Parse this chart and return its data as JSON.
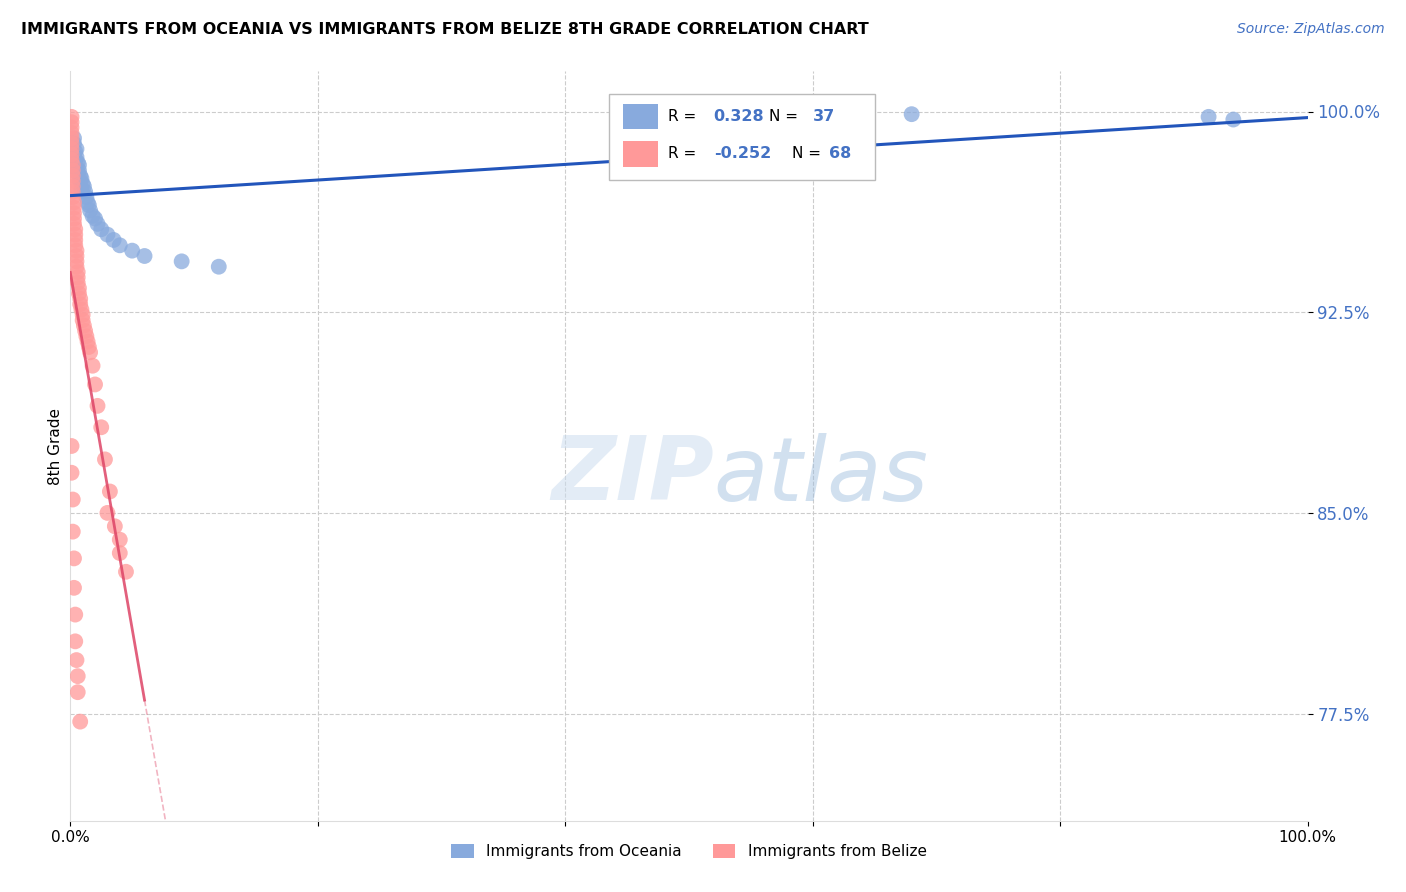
{
  "title": "IMMIGRANTS FROM OCEANIA VS IMMIGRANTS FROM BELIZE 8TH GRADE CORRELATION CHART",
  "source": "Source: ZipAtlas.com",
  "ylabel": "8th Grade",
  "ytick_vals": [
    0.775,
    0.85,
    0.925,
    1.0
  ],
  "ytick_labels": [
    "77.5%",
    "85.0%",
    "92.5%",
    "100.0%"
  ],
  "xmin": 0.0,
  "xmax": 1.0,
  "ymin": 0.735,
  "ymax": 1.015,
  "blue_R": "0.328",
  "blue_N": "37",
  "pink_R": "-0.252",
  "pink_N": "68",
  "blue_color": "#88AADD",
  "pink_color": "#FF9999",
  "blue_line_color": "#2255BB",
  "pink_line_color": "#DD4466",
  "watermark_zip": "ZIP",
  "watermark_atlas": "atlas",
  "legend_label_blue": "Immigrants from Oceania",
  "legend_label_pink": "Immigrants from Belize",
  "blue_x": [
    0.003,
    0.003,
    0.004,
    0.005,
    0.005,
    0.006,
    0.007,
    0.007,
    0.008,
    0.009,
    0.01,
    0.011,
    0.012,
    0.013,
    0.014,
    0.015,
    0.016,
    0.018,
    0.02,
    0.022,
    0.025,
    0.03,
    0.035,
    0.04,
    0.05,
    0.06,
    0.09,
    0.12,
    0.003,
    0.004,
    0.005,
    0.006,
    0.008,
    0.009,
    0.68,
    0.92,
    0.94
  ],
  "blue_y": [
    0.99,
    0.988,
    0.985,
    0.986,
    0.983,
    0.981,
    0.98,
    0.978,
    0.976,
    0.975,
    0.973,
    0.972,
    0.97,
    0.968,
    0.966,
    0.965,
    0.963,
    0.961,
    0.96,
    0.958,
    0.956,
    0.954,
    0.952,
    0.95,
    0.948,
    0.946,
    0.944,
    0.942,
    0.984,
    0.982,
    0.979,
    0.977,
    0.974,
    0.971,
    0.999,
    0.998,
    0.997
  ],
  "pink_x": [
    0.001,
    0.001,
    0.001,
    0.001,
    0.001,
    0.001,
    0.001,
    0.001,
    0.001,
    0.002,
    0.002,
    0.002,
    0.002,
    0.002,
    0.002,
    0.002,
    0.003,
    0.003,
    0.003,
    0.003,
    0.003,
    0.004,
    0.004,
    0.004,
    0.004,
    0.005,
    0.005,
    0.005,
    0.005,
    0.006,
    0.006,
    0.006,
    0.007,
    0.007,
    0.008,
    0.008,
    0.009,
    0.01,
    0.01,
    0.011,
    0.012,
    0.013,
    0.014,
    0.015,
    0.016,
    0.018,
    0.02,
    0.022,
    0.025,
    0.028,
    0.032,
    0.036,
    0.04,
    0.045,
    0.001,
    0.001,
    0.002,
    0.002,
    0.003,
    0.003,
    0.004,
    0.004,
    0.005,
    0.006,
    0.006,
    0.008,
    0.03,
    0.04
  ],
  "pink_y": [
    0.998,
    0.996,
    0.994,
    0.992,
    0.99,
    0.988,
    0.986,
    0.984,
    0.982,
    0.98,
    0.978,
    0.976,
    0.974,
    0.972,
    0.97,
    0.968,
    0.966,
    0.964,
    0.962,
    0.96,
    0.958,
    0.956,
    0.954,
    0.952,
    0.95,
    0.948,
    0.946,
    0.944,
    0.942,
    0.94,
    0.938,
    0.936,
    0.934,
    0.932,
    0.93,
    0.928,
    0.926,
    0.924,
    0.922,
    0.92,
    0.918,
    0.916,
    0.914,
    0.912,
    0.91,
    0.905,
    0.898,
    0.89,
    0.882,
    0.87,
    0.858,
    0.845,
    0.835,
    0.828,
    0.875,
    0.865,
    0.855,
    0.843,
    0.833,
    0.822,
    0.812,
    0.802,
    0.795,
    0.789,
    0.783,
    0.772,
    0.85,
    0.84
  ]
}
